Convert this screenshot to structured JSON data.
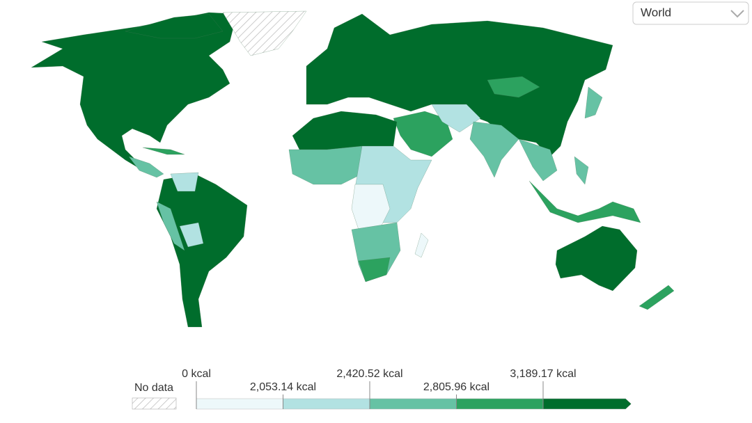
{
  "region_selector": {
    "label": "World"
  },
  "legend": {
    "no_data": "No data",
    "bins": [
      {
        "value": 0,
        "label": "0 kcal"
      },
      {
        "value": 2053.14,
        "label": "2,053.14 kcal"
      },
      {
        "value": 2420.52,
        "label": "2,420.52 kcal"
      },
      {
        "value": 2805.96,
        "label": "2,805.96 kcal"
      },
      {
        "value": 3189.17,
        "label": "3,189.17 kcal"
      }
    ],
    "colors": [
      "#edf8fa",
      "#b2e2e2",
      "#66c2a4",
      "#2ca25f",
      "#006d2c"
    ]
  }
}
